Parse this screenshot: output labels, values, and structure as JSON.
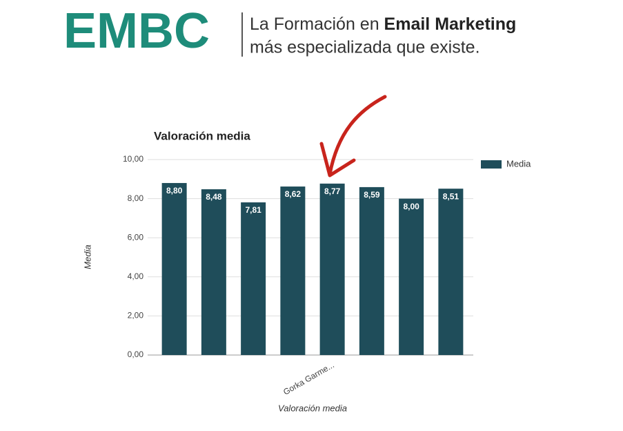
{
  "header": {
    "logo": "EMBC",
    "tagline_start": "La Formación en ",
    "tagline_bold": "Email Marketing",
    "tagline_line2": "más especializada que existe."
  },
  "chart_data": {
    "type": "bar",
    "title": "Valoración media",
    "x_label": "Valoración media",
    "y_label": "Media",
    "categories": [
      null,
      null,
      null,
      null,
      "Gorka Garme...",
      null,
      null,
      null
    ],
    "series": [
      {
        "name": "Media",
        "color": "#1f4d5a",
        "values": [
          8.8,
          8.48,
          7.81,
          8.62,
          8.77,
          8.59,
          8.0,
          8.51
        ],
        "value_labels": [
          "8,80",
          "8,48",
          "7,81",
          "8,62",
          "8,77",
          "8,59",
          "8,00",
          "8,51"
        ]
      }
    ],
    "ylim": [
      0,
      10
    ],
    "yticks": [
      {
        "value": 0,
        "label": "0,00"
      },
      {
        "value": 2,
        "label": "2,00"
      },
      {
        "value": 4,
        "label": "4,00"
      },
      {
        "value": 6,
        "label": "6,00"
      },
      {
        "value": 8,
        "label": "8,00"
      },
      {
        "value": 10,
        "label": "10,00"
      }
    ],
    "grid": true,
    "legend": "right"
  }
}
